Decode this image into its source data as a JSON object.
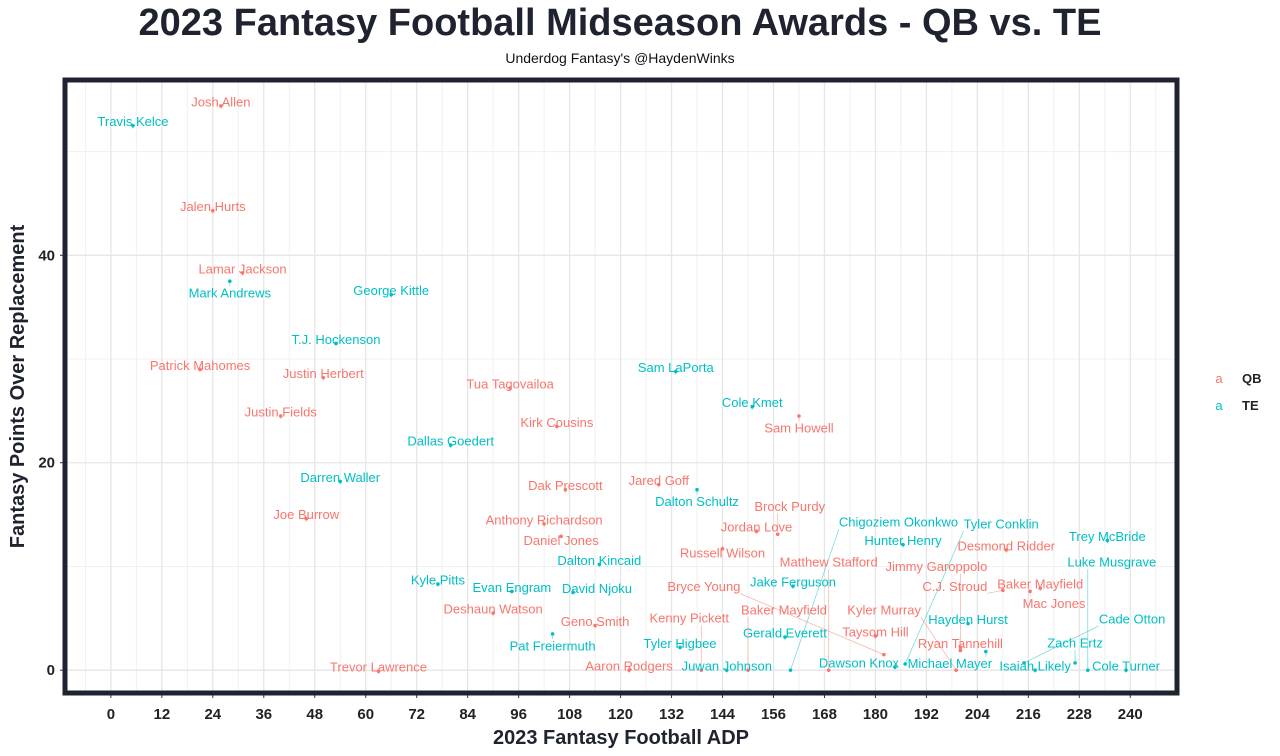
{
  "chart_data": {
    "type": "scatter",
    "title": "2023 Fantasy Football Midseason Awards - QB vs. TE",
    "subtitle": "Underdog Fantasy's @HaydenWinks",
    "xlabel": "2023 Fantasy Football ADP",
    "ylabel": "Fantasy Points Over Replacement",
    "xlim": [
      -10.8,
      251
    ],
    "ylim": [
      -2.2,
      56.9
    ],
    "xticks": [
      0,
      12,
      24,
      36,
      48,
      60,
      72,
      84,
      96,
      108,
      120,
      132,
      144,
      156,
      168,
      180,
      192,
      204,
      216,
      228,
      240
    ],
    "yticks": [
      0,
      20,
      40
    ],
    "grid": true,
    "legend": {
      "placement": "right",
      "glyph": "a",
      "entries": [
        {
          "name": "QB",
          "color": "#F8766D"
        },
        {
          "name": "TE",
          "color": "#00BFC4"
        }
      ]
    },
    "series": [
      {
        "name": "QB",
        "color": "#F8766D",
        "points": [
          {
            "label": "Josh Allen",
            "x": 25.9,
            "y": 54.4
          },
          {
            "label": "Jalen Hurts",
            "x": 24,
            "y": 44.3
          },
          {
            "label": "Lamar Jackson",
            "x": 31,
            "y": 38.3
          },
          {
            "label": "Patrick Mahomes",
            "x": 21,
            "y": 29
          },
          {
            "label": "Justin Herbert",
            "x": 50,
            "y": 28.2
          },
          {
            "label": "Tua Tagovailoa",
            "x": 94,
            "y": 27.2
          },
          {
            "label": "Sam Howell",
            "x": 162,
            "y": 24.5
          },
          {
            "label": "Justin Fields",
            "x": 40,
            "y": 24.5
          },
          {
            "label": "Kirk Cousins",
            "x": 105,
            "y": 23.5
          },
          {
            "label": "Dak Prescott",
            "x": 107,
            "y": 17.4
          },
          {
            "label": "Jared Goff",
            "x": 129,
            "y": 17.9
          },
          {
            "label": "Joe Burrow",
            "x": 46,
            "y": 14.6
          },
          {
            "label": "Anthony Richardson",
            "x": 102,
            "y": 14.1
          },
          {
            "label": "Daniel Jones",
            "x": 106,
            "y": 12.9
          },
          {
            "label": "Jordan Love",
            "x": 152,
            "y": 13.4
          },
          {
            "label": "Brock Purdy",
            "x": 157,
            "y": 13.1
          },
          {
            "label": "Russell Wilson",
            "x": 144,
            "y": 11.7
          },
          {
            "label": "Desmond Ridder",
            "x": 210.8,
            "y": 11.6
          },
          {
            "label": "C.J. Stroud",
            "x": 210,
            "y": 7.7
          },
          {
            "label": "Baker Mayfield",
            "x": 218.8,
            "y": 7.9
          },
          {
            "label": "Mac Jones",
            "x": 216.4,
            "y": 7.6
          },
          {
            "label": "Deshaun Watson",
            "x": 90,
            "y": 5.5
          },
          {
            "label": "Geno Smith",
            "x": 114,
            "y": 4.3
          },
          {
            "label": "Taysom Hill",
            "x": 180,
            "y": 3.3
          },
          {
            "label": "Ryan Tannehill",
            "x": 200,
            "y": 2.2
          },
          {
            "label": "Jimmy Garoppolo",
            "x": 200,
            "y": 1.9
          },
          {
            "label": "Bryce Young",
            "x": 182,
            "y": 1.5
          },
          {
            "label": "Trevor Lawrence",
            "x": 63,
            "y": -0.1
          },
          {
            "label": "Aaron Rodgers",
            "x": 122,
            "y": 0
          },
          {
            "label": "Kenny Pickett",
            "x": 139,
            "y": 0
          },
          {
            "label": "Baker Mayfield",
            "x": 150,
            "y": 0
          },
          {
            "label": "Matthew Stafford",
            "x": 169,
            "y": 0
          },
          {
            "label": "Kyler Murray",
            "x": 199,
            "y": 0
          }
        ]
      },
      {
        "name": "TE",
        "color": "#00BFC4",
        "points": [
          {
            "label": "Travis Kelce",
            "x": 5.2,
            "y": 52.5
          },
          {
            "label": "Mark Andrews",
            "x": 28,
            "y": 37.5
          },
          {
            "label": "George Kittle",
            "x": 66,
            "y": 36.2
          },
          {
            "label": "T.J. Hockenson",
            "x": 53,
            "y": 31.5
          },
          {
            "label": "Sam LaPorta",
            "x": 133,
            "y": 28.8
          },
          {
            "label": "Cole Kmet",
            "x": 151,
            "y": 25.4
          },
          {
            "label": "Dallas Goedert",
            "x": 80,
            "y": 21.7
          },
          {
            "label": "Darren Waller",
            "x": 54,
            "y": 18.2
          },
          {
            "label": "Dalton Schultz",
            "x": 138,
            "y": 17.4
          },
          {
            "label": "Trey McBride",
            "x": 234.6,
            "y": 12.5
          },
          {
            "label": "Hunter Henry",
            "x": 186.5,
            "y": 12.1
          },
          {
            "label": "Dalton Kincaid",
            "x": 115,
            "y": 10.2
          },
          {
            "label": "Kyle Pitts",
            "x": 77,
            "y": 8.3
          },
          {
            "label": "Evan Engram",
            "x": 94.4,
            "y": 7.6
          },
          {
            "label": "David Njoku",
            "x": 108.8,
            "y": 7.5
          },
          {
            "label": "Jake Ferguson",
            "x": 160.6,
            "y": 8.1
          },
          {
            "label": "Pat Freiermuth",
            "x": 104,
            "y": 3.5
          },
          {
            "label": "Hayden Hurst",
            "x": 201.8,
            "y": 4.5
          },
          {
            "label": "Tyler Higbee",
            "x": 134,
            "y": 2.2
          },
          {
            "label": "Gerald Everett",
            "x": 158.7,
            "y": 3.2
          },
          {
            "label": "Michael Mayer",
            "x": 206,
            "y": 1.8
          },
          {
            "label": "Dawson Knox",
            "x": 184.6,
            "y": 0.3
          },
          {
            "label": "Tyler Conklin",
            "x": 187,
            "y": 0.6
          },
          {
            "label": "Cade Otton",
            "x": 215,
            "y": 0.7
          },
          {
            "label": "Zach Ertz",
            "x": 227,
            "y": 0.7
          },
          {
            "label": "Juwan Johnson",
            "x": 145,
            "y": 0
          },
          {
            "label": "Chigoziem Okonkwo",
            "x": 160,
            "y": 0
          },
          {
            "label": "Isaiah Likely",
            "x": 217.6,
            "y": 0
          },
          {
            "label": "Luke Musgrave",
            "x": 230,
            "y": 0
          },
          {
            "label": "Cole Turner",
            "x": 239,
            "y": 0
          }
        ]
      }
    ]
  }
}
